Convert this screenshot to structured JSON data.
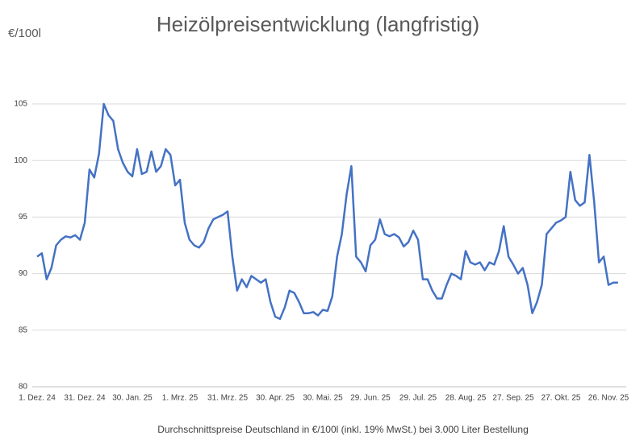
{
  "chart_data": {
    "type": "line",
    "title": "Heizölpreisentwicklung (langfristig)",
    "y_unit_label": "€/100l",
    "footnote": "Durchschnittspreise Deutschland in €/100l (inkl. 19% MwSt.) bei 3.000 Liter Bestellung",
    "categories": [
      "1. Dez. 24",
      null,
      null,
      null,
      null,
      null,
      null,
      null,
      null,
      null,
      "31. Dez. 24",
      null,
      null,
      null,
      null,
      null,
      null,
      null,
      null,
      null,
      "30. Jan. 25",
      null,
      null,
      null,
      null,
      null,
      null,
      null,
      null,
      null,
      "1. Mrz. 25",
      null,
      null,
      null,
      null,
      null,
      null,
      null,
      null,
      null,
      "31. Mrz. 25",
      null,
      null,
      null,
      null,
      null,
      null,
      null,
      null,
      null,
      "30. Apr. 25",
      null,
      null,
      null,
      null,
      null,
      null,
      null,
      null,
      null,
      "30. Mai. 25",
      null,
      null,
      null,
      null,
      null,
      null,
      null,
      null,
      null,
      "29. Jun. 25",
      null,
      null,
      null,
      null,
      null,
      null,
      null,
      null,
      null,
      "29. Jul. 25",
      null,
      null,
      null,
      null,
      null,
      null,
      null,
      null,
      null,
      "28. Aug. 25",
      null,
      null,
      null,
      null,
      null,
      null,
      null,
      null,
      null,
      "27. Sep. 25",
      null,
      null,
      null,
      null,
      null,
      null,
      null,
      null,
      null,
      "27. Okt. 25",
      null,
      null,
      null,
      null,
      null,
      null,
      null,
      null,
      null,
      "26. Nov. 25",
      null,
      null
    ],
    "series": [
      {
        "color": "#4472c4",
        "values": [
          91.5,
          91.8,
          89.5,
          90.5,
          92.5,
          93.0,
          93.3,
          93.2,
          93.4,
          93.0,
          94.5,
          99.2,
          98.5,
          100.6,
          105.0,
          104.0,
          103.5,
          101.0,
          99.8,
          99.0,
          98.6,
          101.0,
          98.8,
          99.0,
          100.8,
          99.0,
          99.5,
          101.0,
          100.5,
          97.8,
          98.3,
          94.5,
          93.0,
          92.5,
          92.3,
          92.8,
          94.0,
          94.8,
          95.0,
          95.2,
          95.5,
          91.5,
          88.5,
          89.5,
          88.8,
          89.8,
          89.5,
          89.2,
          89.5,
          87.5,
          86.2,
          86.0,
          87.0,
          88.5,
          88.3,
          87.5,
          86.5,
          86.5,
          86.6,
          86.3,
          86.8,
          86.7,
          88.0,
          91.5,
          93.5,
          97.0,
          99.5,
          91.5,
          91.0,
          90.2,
          92.5,
          93.0,
          94.8,
          93.5,
          93.3,
          93.5,
          93.2,
          92.4,
          92.8,
          93.8,
          93.0,
          89.5,
          89.5,
          88.5,
          87.8,
          87.8,
          89.0,
          90.0,
          89.8,
          89.5,
          92.0,
          91.0,
          90.8,
          91.0,
          90.3,
          91.0,
          90.8,
          92.0,
          94.2,
          91.5,
          90.8,
          90.0,
          90.5,
          89.0,
          86.5,
          87.5,
          89.0,
          93.5,
          94.0,
          94.5,
          94.7,
          95.0,
          99.0,
          96.5,
          96.0,
          96.3,
          100.5,
          96.3,
          91.0,
          91.5,
          89.0,
          89.2,
          89.2
        ]
      }
    ],
    "ylim": [
      80,
      105
    ],
    "yticks": [
      80,
      85,
      90,
      95,
      100,
      105
    ],
    "grid": true
  }
}
